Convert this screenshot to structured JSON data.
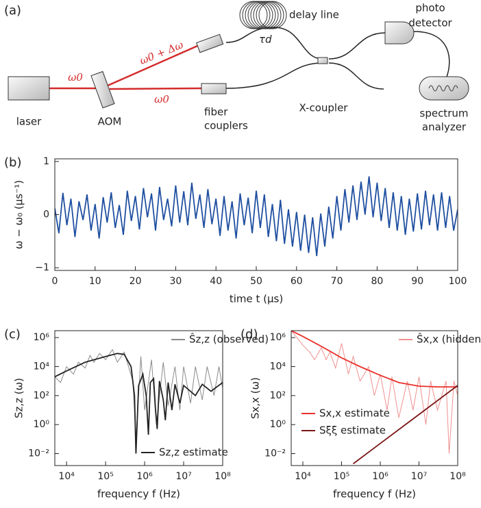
{
  "diagram": {
    "panel": "(a)",
    "laser": "laser",
    "aom": "AOM",
    "omega_in": "ω0",
    "omega_shifted": "ω0 + Δω",
    "omega_ref": "ω0",
    "fiber_couplers": [
      "fiber",
      "couplers"
    ],
    "delay_line": "delay line",
    "tau": "τd",
    "photo_detector": [
      "photo",
      "detector"
    ],
    "x_coupler": "X-coupler",
    "spectrum_analyzer": [
      "spectrum",
      "analyzer"
    ]
  },
  "chart_data": [
    {
      "type": "line",
      "panel": "(b)",
      "xlabel": "time t (μs)",
      "ylabel": "ω − ω₀ (μs⁻¹)",
      "xlim": [
        0,
        100
      ],
      "ylim": [
        -1.05,
        1.05
      ],
      "xticks": [
        0,
        10,
        20,
        30,
        40,
        50,
        60,
        70,
        80,
        90,
        100
      ],
      "yticks": [
        {
          "value": -1,
          "label": "−1"
        },
        0,
        1
      ],
      "series": [
        {
          "color": "#1f4fa0",
          "x": [
            0,
            1,
            2,
            3,
            4,
            5,
            6,
            7,
            8,
            9,
            10,
            11,
            12,
            13,
            14,
            15,
            16,
            17,
            18,
            19,
            20,
            21,
            22,
            23,
            24,
            25,
            26,
            27,
            28,
            29,
            30,
            31,
            32,
            33,
            34,
            35,
            36,
            37,
            38,
            39,
            40,
            41,
            42,
            43,
            44,
            45,
            46,
            47,
            48,
            49,
            50,
            51,
            52,
            53,
            54,
            55,
            56,
            57,
            58,
            59,
            60,
            61,
            62,
            63,
            64,
            65,
            66,
            67,
            68,
            69,
            70,
            71,
            72,
            73,
            74,
            75,
            76,
            77,
            78,
            79,
            80,
            81,
            82,
            83,
            84,
            85,
            86,
            87,
            88,
            89,
            90,
            91,
            92,
            93,
            94,
            95,
            96,
            97,
            98,
            99,
            100
          ],
          "values": [
            0.12,
            -0.35,
            0.41,
            -0.2,
            0.3,
            -0.42,
            0.25,
            -0.1,
            0.38,
            -0.3,
            0.2,
            -0.45,
            0.33,
            -0.15,
            0.42,
            -0.25,
            0.18,
            -0.38,
            0.45,
            -0.12,
            0.35,
            -0.28,
            0.5,
            -0.05,
            0.4,
            -0.3,
            0.52,
            -0.1,
            0.3,
            -0.22,
            0.55,
            -0.15,
            0.44,
            -0.2,
            0.6,
            -0.08,
            0.38,
            -0.25,
            0.48,
            -0.18,
            0.3,
            -0.4,
            0.35,
            -0.3,
            0.25,
            -0.45,
            0.4,
            -0.2,
            0.32,
            -0.35,
            0.45,
            -0.25,
            0.38,
            -0.42,
            0.2,
            -0.5,
            0.28,
            -0.55,
            0.1,
            -0.6,
            0.05,
            -0.68,
            0.0,
            -0.72,
            -0.05,
            -0.78,
            0.02,
            -0.6,
            0.15,
            -0.45,
            0.35,
            -0.3,
            0.48,
            -0.15,
            0.55,
            -0.1,
            0.62,
            0.0,
            0.72,
            -0.05,
            0.6,
            -0.12,
            0.5,
            -0.25,
            0.42,
            -0.3,
            0.35,
            -0.38,
            0.3,
            -0.32,
            0.4,
            -0.28,
            0.45,
            -0.2,
            0.38,
            -0.3,
            0.42,
            -0.25,
            0.35,
            -0.3,
            0.1
          ]
        }
      ]
    },
    {
      "type": "line",
      "panel": "(c)",
      "xlabel": "frequency f (Hz)",
      "ylabel": "Sz,z (ω)",
      "xlog": true,
      "ylog": true,
      "xlim": [
        5000,
        100000000
      ],
      "ylim": [
        0.0015,
        3000000
      ],
      "xticks": [
        {
          "value": 10000,
          "label": "10⁴"
        },
        {
          "value": 100000,
          "label": "10⁵"
        },
        {
          "value": 1000000,
          "label": "10⁶"
        },
        {
          "value": 10000000,
          "label": "10⁷"
        },
        {
          "value": 100000000,
          "label": "10⁸"
        }
      ],
      "yticks": [
        {
          "value": 0.01,
          "label": "10⁻²"
        },
        {
          "value": 1,
          "label": "10⁰"
        },
        {
          "value": 100,
          "label": "10²"
        },
        {
          "value": 10000,
          "label": "10⁴"
        },
        {
          "value": 1000000,
          "label": "10⁶"
        }
      ],
      "series": [
        {
          "name": "Ŝz,z (observed)",
          "color": "#8a8a8a",
          "x": [
            5000,
            7000,
            10000,
            15000,
            20000,
            30000,
            40000,
            50000,
            70000,
            100000,
            150000,
            200000,
            300000,
            500000,
            600000,
            800000,
            1000000,
            1500000,
            2000000,
            3000000,
            4000000,
            6000000,
            8000000,
            10000000,
            15000000,
            20000000,
            30000000,
            40000000,
            60000000,
            80000000,
            100000000
          ],
          "values": [
            2000,
            800,
            10000,
            3000,
            20000,
            8000,
            60000,
            20000,
            80000,
            30000,
            150000,
            20000,
            100000,
            1000,
            0.1,
            50000,
            10,
            30000,
            1,
            20000,
            20,
            10000,
            10,
            10000,
            30,
            10000,
            50,
            10000,
            100,
            10000,
            300
          ]
        },
        {
          "name": "Sz,z estimate",
          "color": "#222222",
          "x": [
            5000,
            10000,
            30000,
            100000,
            200000,
            300000,
            450000,
            550000,
            600000,
            700000,
            900000,
            1100000,
            1250000,
            1400000,
            1700000,
            1900000,
            2100000,
            2400000,
            3000000,
            3400000,
            4000000,
            5000000,
            6000000,
            8000000,
            10000000,
            20000000,
            30000000,
            50000000,
            100000000
          ],
          "values": [
            2000,
            5000,
            20000,
            50000,
            80000,
            70000,
            10000,
            100,
            0.01,
            500,
            3000,
            100,
            0.2,
            800,
            1500,
            10,
            0.5,
            1000,
            50,
            2,
            800,
            10,
            600,
            30,
            500,
            100,
            600,
            200,
            800
          ]
        }
      ]
    },
    {
      "type": "line",
      "panel": "(d)",
      "xlabel": "frequency f (Hz)",
      "ylabel": "Sx,x (ω)",
      "xlog": true,
      "ylog": true,
      "xlim": [
        5000,
        100000000
      ],
      "ylim": [
        0.0015,
        3000000
      ],
      "xticks": [
        {
          "value": 10000,
          "label": "10⁴"
        },
        {
          "value": 100000,
          "label": "10⁵"
        },
        {
          "value": 1000000,
          "label": "10⁶"
        },
        {
          "value": 10000000,
          "label": "10⁷"
        },
        {
          "value": 100000000,
          "label": "10⁸"
        }
      ],
      "yticks": [
        {
          "value": 0.01,
          "label": "10⁻²"
        },
        {
          "value": 1,
          "label": "10⁰"
        },
        {
          "value": 100,
          "label": "10²"
        },
        {
          "value": 10000,
          "label": "10⁴"
        },
        {
          "value": 1000000,
          "label": "10⁶"
        }
      ],
      "series": [
        {
          "name": "Ŝx,x (hidden)",
          "color": "#f09090",
          "x": [
            5000,
            7000,
            10000,
            15000,
            20000,
            30000,
            40000,
            50000,
            70000,
            100000,
            150000,
            200000,
            300000,
            500000,
            700000,
            1000000,
            1500000,
            2000000,
            3000000,
            5000000,
            7000000,
            10000000,
            15000000,
            20000000,
            30000000,
            50000000,
            60000000,
            80000000,
            100000000
          ],
          "values": [
            3000000,
            1000000,
            300000,
            100000,
            30000,
            200000,
            30000,
            100000,
            8000,
            400000,
            3000,
            50000,
            1000,
            10000,
            100,
            3000,
            10,
            2000,
            3,
            1000,
            10,
            2000,
            1,
            1000,
            10,
            1000,
            0.01,
            1000,
            100
          ]
        },
        {
          "name": "Sx,x estimate",
          "color": "#e8302a",
          "x": [
            5000,
            10000,
            30000,
            100000,
            300000,
            1000000,
            3000000,
            10000000,
            30000000,
            100000000
          ],
          "values": [
            3000000,
            1200000,
            250000,
            40000,
            10000,
            2500,
            800,
            450,
            400,
            400
          ]
        },
        {
          "name": "Sξξ estimate",
          "color": "#7a1515",
          "x": [
            200000,
            1000000,
            10000000,
            100000000
          ],
          "values": [
            0.002,
            0.05,
            5,
            500
          ]
        }
      ]
    }
  ]
}
